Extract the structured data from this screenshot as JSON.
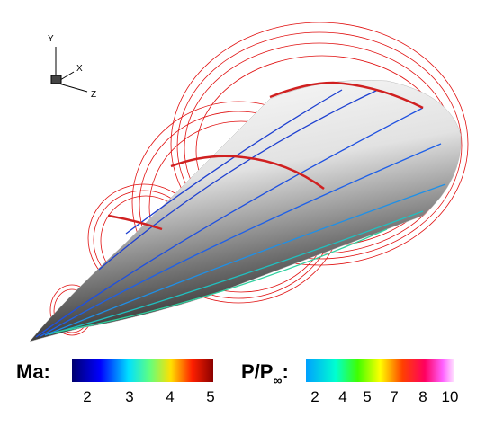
{
  "axes_triad": {
    "y_label": "Y",
    "x_label": "X",
    "z_label": "Z"
  },
  "colorbars": [
    {
      "title": "Ma:",
      "ticks": [
        "2",
        "3",
        "4",
        "5"
      ]
    },
    {
      "title_main": "P/P",
      "title_sub": "∞",
      "title_end": ":",
      "ticks": [
        "2",
        "4",
        "5",
        "7",
        "8",
        "10"
      ]
    }
  ]
}
